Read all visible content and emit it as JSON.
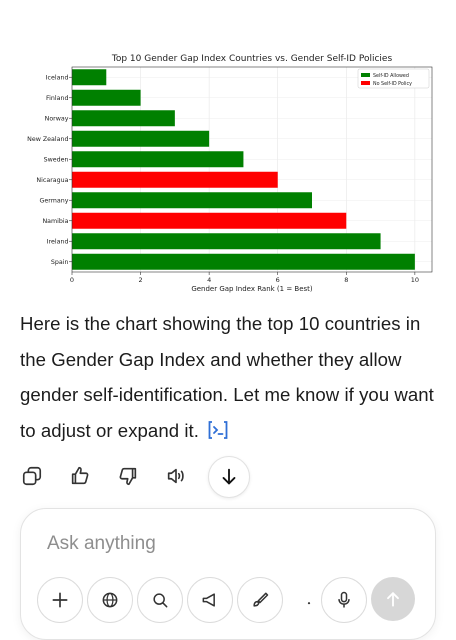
{
  "chart_data": {
    "type": "bar",
    "orientation": "horizontal",
    "title": "Top 10 Gender Gap Index Countries vs. Gender Self-ID Policies",
    "xlabel": "Gender Gap Index Rank (1 = Best)",
    "ylabel": "",
    "xlim": [
      0,
      10.5
    ],
    "xticks": [
      0,
      2,
      4,
      6,
      8,
      10
    ],
    "grid": true,
    "legend_position": "top-right",
    "legend": [
      {
        "label": "Self-ID Allowed",
        "color": "#008000"
      },
      {
        "label": "No Self-ID Policy",
        "color": "#ff0000"
      }
    ],
    "categories": [
      "Iceland",
      "Finland",
      "Norway",
      "New Zealand",
      "Sweden",
      "Nicaragua",
      "Germany",
      "Namibia",
      "Ireland",
      "Spain"
    ],
    "values": [
      1,
      2,
      3,
      4,
      5,
      6,
      7,
      8,
      9,
      10
    ],
    "bar_colors": [
      "#008000",
      "#008000",
      "#008000",
      "#008000",
      "#008000",
      "#ff0000",
      "#008000",
      "#ff0000",
      "#008000",
      "#008000"
    ]
  },
  "message": {
    "text": "Here is the chart showing the top 10 countries in the Gender Gap Index and whether they allow gender self-identification. Let me know if you want to adjust or expand it."
  },
  "actions": [
    "copy-icon",
    "thumbs-up-icon",
    "thumbs-down-icon",
    "speaker-icon",
    "arrow-down-icon"
  ],
  "composer": {
    "placeholder": "Ask anything"
  },
  "colors": {
    "accent_link": "#2f6fd6",
    "send_disabled": "#d7d7d7"
  }
}
